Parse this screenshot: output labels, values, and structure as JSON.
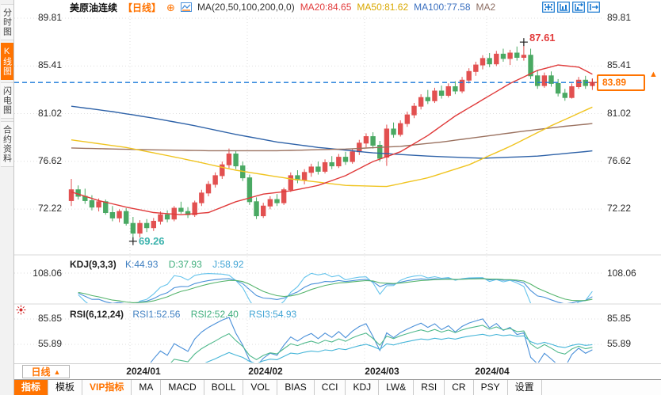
{
  "sidebar": {
    "items": [
      {
        "label": "分时图",
        "active": false
      },
      {
        "label": "K线图",
        "active": true
      },
      {
        "label": "闪电图",
        "active": false
      },
      {
        "label": "合约资料",
        "active": false
      }
    ]
  },
  "header": {
    "title": "美原油连续",
    "period_tag": "【日线】",
    "ma_formula": "MA(20,50,100,200,0,0)",
    "ma20": "MA20:84.65",
    "ma50": "MA50:81.62",
    "ma100": "MA100:77.58",
    "ma200": "MA2"
  },
  "icons": {
    "circle_plus": "⊕",
    "dropdown_up": "▲",
    "price_marker": "▲"
  },
  "price_axis": {
    "left": [
      "89.81",
      "85.41",
      "81.02",
      "76.62",
      "72.22"
    ],
    "right": [
      "89.81",
      "85.41",
      "81.02",
      "76.62",
      "72.22"
    ],
    "current": "83.89"
  },
  "annotations": {
    "high": "87.61",
    "low": "69.26"
  },
  "kdj": {
    "title": "KDJ(9,3,3)",
    "k": "K:44.93",
    "d": "D:37.93",
    "j": "J:58.92",
    "axis": "108.06"
  },
  "rsi": {
    "title": "RSI(6,12,24)",
    "rsi1": "RSI1:52.56",
    "rsi2": "RSI2:52.40",
    "rsi3": "RSI3:54.93",
    "axis_top": "85.85",
    "axis_bottom": "55.89"
  },
  "x_axis": {
    "period_button": "日线",
    "labels": [
      "2024/01",
      "2024/02",
      "2024/03",
      "2024/04"
    ]
  },
  "tabs": [
    "指标",
    "模板",
    "VIP指标",
    "MA",
    "MACD",
    "BOLL",
    "VOL",
    "BIAS",
    "CCI",
    "KDJ",
    "LW&",
    "RSI",
    "CR",
    "PSY",
    "设置"
  ],
  "colors": {
    "accent": "#ff7300",
    "up": "#e25050",
    "down": "#4aa963",
    "ma20": "#e03a3a",
    "ma50": "#f0c420",
    "ma100": "#2e62a8",
    "ma200": "#9b7260",
    "last_price_line": "#1a7ad9",
    "grid": "#dedede",
    "k": "#4a90d9",
    "d": "#54b46c",
    "j": "#66c4ec",
    "rsi1": "#4a90d9",
    "rsi2": "#50b98c",
    "rsi3": "#45b5d8"
  },
  "chart_data": {
    "type": "candlestick",
    "symbol": "美原油连续",
    "interval": "日线",
    "y_ticks": [
      89.81,
      85.41,
      81.02,
      76.62,
      72.22
    ],
    "x_tick_labels": [
      "2024/01",
      "2024/02",
      "2024/03",
      "2024/04"
    ],
    "last_price": 83.89,
    "high_annotation": {
      "index": 66,
      "price": 87.61
    },
    "low_annotation": {
      "index": 9,
      "price": 69.26
    },
    "ma_values": {
      "ma20": 84.65,
      "ma50": 81.62,
      "ma100": 77.58
    },
    "kdj_values": {
      "k": 44.93,
      "d": 37.93,
      "j": 58.92
    },
    "rsi_values": {
      "rsi1": 52.56,
      "rsi2": 52.4,
      "rsi3": 54.93
    },
    "candles": [
      [
        73.0,
        75.0,
        72.5,
        74.0
      ],
      [
        74.0,
        74.4,
        73.1,
        73.4
      ],
      [
        73.4,
        74.1,
        72.7,
        73.0
      ],
      [
        73.0,
        73.5,
        72.1,
        72.4
      ],
      [
        72.4,
        73.2,
        72.0,
        72.9
      ],
      [
        72.9,
        73.1,
        71.7,
        71.9
      ],
      [
        71.9,
        72.5,
        71.1,
        71.4
      ],
      [
        71.4,
        72.2,
        71.0,
        72.0
      ],
      [
        72.0,
        72.3,
        70.7,
        70.9
      ],
      [
        70.9,
        71.5,
        69.26,
        70.0
      ],
      [
        70.0,
        71.2,
        69.6,
        70.9
      ],
      [
        70.9,
        71.3,
        70.1,
        70.5
      ],
      [
        70.5,
        71.4,
        70.2,
        71.1
      ],
      [
        71.1,
        72.0,
        70.8,
        71.7
      ],
      [
        71.7,
        72.1,
        71.0,
        71.3
      ],
      [
        71.3,
        72.5,
        71.1,
        72.3
      ],
      [
        72.3,
        72.9,
        71.8,
        72.0
      ],
      [
        72.0,
        72.4,
        71.4,
        71.7
      ],
      [
        71.7,
        73.0,
        71.5,
        72.8
      ],
      [
        72.8,
        74.0,
        72.5,
        73.7
      ],
      [
        73.7,
        74.8,
        73.4,
        74.5
      ],
      [
        74.5,
        75.6,
        74.2,
        75.3
      ],
      [
        75.3,
        76.6,
        75.0,
        76.3
      ],
      [
        76.3,
        77.8,
        76.0,
        77.3
      ],
      [
        77.3,
        77.6,
        75.9,
        76.2
      ],
      [
        76.2,
        76.6,
        74.8,
        75.1
      ],
      [
        75.1,
        75.4,
        72.6,
        72.9
      ],
      [
        72.9,
        73.3,
        71.3,
        71.6
      ],
      [
        71.6,
        72.8,
        71.4,
        72.5
      ],
      [
        72.5,
        73.4,
        72.2,
        73.1
      ],
      [
        73.1,
        73.6,
        72.5,
        72.8
      ],
      [
        72.8,
        74.2,
        72.6,
        74.0
      ],
      [
        74.0,
        75.6,
        73.8,
        75.3
      ],
      [
        75.3,
        75.8,
        74.6,
        74.9
      ],
      [
        74.9,
        75.9,
        74.5,
        75.6
      ],
      [
        75.6,
        76.4,
        75.2,
        76.1
      ],
      [
        76.1,
        76.6,
        75.4,
        75.7
      ],
      [
        75.7,
        76.8,
        75.5,
        76.5
      ],
      [
        76.5,
        77.1,
        75.9,
        76.2
      ],
      [
        76.2,
        77.3,
        76.0,
        77.0
      ],
      [
        77.0,
        77.5,
        76.3,
        76.6
      ],
      [
        76.6,
        77.8,
        76.4,
        77.5
      ],
      [
        77.5,
        78.6,
        77.2,
        78.3
      ],
      [
        78.3,
        79.2,
        77.9,
        78.9
      ],
      [
        78.9,
        79.3,
        77.8,
        78.1
      ],
      [
        78.1,
        78.5,
        76.6,
        76.9
      ],
      [
        77.0,
        80.0,
        76.2,
        79.6
      ],
      [
        79.6,
        80.2,
        78.8,
        79.1
      ],
      [
        79.1,
        80.4,
        78.9,
        80.1
      ],
      [
        80.1,
        81.2,
        79.8,
        80.9
      ],
      [
        80.9,
        82.0,
        80.6,
        81.7
      ],
      [
        81.7,
        82.8,
        81.4,
        82.5
      ],
      [
        82.5,
        83.2,
        81.9,
        82.2
      ],
      [
        82.2,
        83.4,
        82.0,
        83.1
      ],
      [
        83.1,
        83.6,
        82.4,
        82.7
      ],
      [
        82.7,
        83.8,
        82.5,
        83.5
      ],
      [
        83.5,
        84.0,
        82.8,
        83.1
      ],
      [
        83.1,
        84.4,
        82.9,
        84.1
      ],
      [
        84.1,
        85.2,
        83.8,
        84.9
      ],
      [
        84.9,
        85.8,
        84.5,
        85.5
      ],
      [
        85.5,
        86.4,
        85.1,
        86.1
      ],
      [
        86.1,
        86.6,
        85.3,
        85.6
      ],
      [
        85.6,
        86.8,
        85.4,
        86.5
      ],
      [
        86.5,
        87.0,
        85.8,
        86.1
      ],
      [
        86.1,
        86.9,
        85.5,
        86.6
      ],
      [
        86.6,
        87.2,
        85.9,
        86.2
      ],
      [
        86.2,
        87.61,
        85.9,
        86.4
      ],
      [
        86.4,
        87.0,
        84.2,
        84.5
      ],
      [
        84.5,
        85.0,
        83.3,
        83.6
      ],
      [
        83.6,
        84.8,
        83.4,
        84.5
      ],
      [
        84.5,
        84.9,
        83.5,
        83.8
      ],
      [
        83.8,
        84.2,
        82.6,
        82.9
      ],
      [
        82.9,
        83.3,
        82.2,
        82.5
      ],
      [
        82.5,
        83.8,
        82.4,
        83.5
      ],
      [
        83.5,
        84.4,
        83.3,
        84.1
      ],
      [
        84.1,
        84.5,
        83.3,
        83.6
      ],
      [
        83.6,
        84.2,
        83.2,
        83.89
      ]
    ],
    "ma_lines": {
      "ma20": [
        [
          0,
          73.8
        ],
        [
          4,
          73.0
        ],
        [
          8,
          72.4
        ],
        [
          12,
          71.9
        ],
        [
          16,
          71.7
        ],
        [
          20,
          71.9
        ],
        [
          24,
          72.9
        ],
        [
          28,
          73.6
        ],
        [
          32,
          73.9
        ],
        [
          36,
          74.4
        ],
        [
          40,
          75.3
        ],
        [
          44,
          76.6
        ],
        [
          48,
          77.5
        ],
        [
          52,
          79.0
        ],
        [
          56,
          80.8
        ],
        [
          60,
          82.3
        ],
        [
          64,
          83.8
        ],
        [
          68,
          85.0
        ],
        [
          71,
          85.5
        ],
        [
          74,
          85.3
        ],
        [
          76,
          84.65
        ]
      ],
      "ma50": [
        [
          0,
          78.6
        ],
        [
          8,
          77.9
        ],
        [
          16,
          76.9
        ],
        [
          24,
          75.8
        ],
        [
          32,
          75.0
        ],
        [
          40,
          74.4
        ],
        [
          46,
          74.3
        ],
        [
          52,
          75.1
        ],
        [
          58,
          76.3
        ],
        [
          64,
          78.0
        ],
        [
          70,
          79.9
        ],
        [
          76,
          81.62
        ]
      ],
      "ma100": [
        [
          0,
          81.7
        ],
        [
          6,
          81.2
        ],
        [
          12,
          80.6
        ],
        [
          18,
          79.9
        ],
        [
          24,
          79.1
        ],
        [
          30,
          78.4
        ],
        [
          36,
          77.9
        ],
        [
          44,
          77.4
        ],
        [
          52,
          77.1
        ],
        [
          60,
          76.9
        ],
        [
          68,
          77.1
        ],
        [
          73,
          77.4
        ],
        [
          76,
          77.58
        ]
      ],
      "ma200": [
        [
          0,
          77.85
        ],
        [
          10,
          77.7
        ],
        [
          20,
          77.6
        ],
        [
          30,
          77.6
        ],
        [
          40,
          77.75
        ],
        [
          48,
          78.0
        ],
        [
          54,
          78.4
        ],
        [
          60,
          78.9
        ],
        [
          66,
          79.4
        ],
        [
          72,
          79.85
        ],
        [
          76,
          80.1
        ]
      ]
    }
  }
}
